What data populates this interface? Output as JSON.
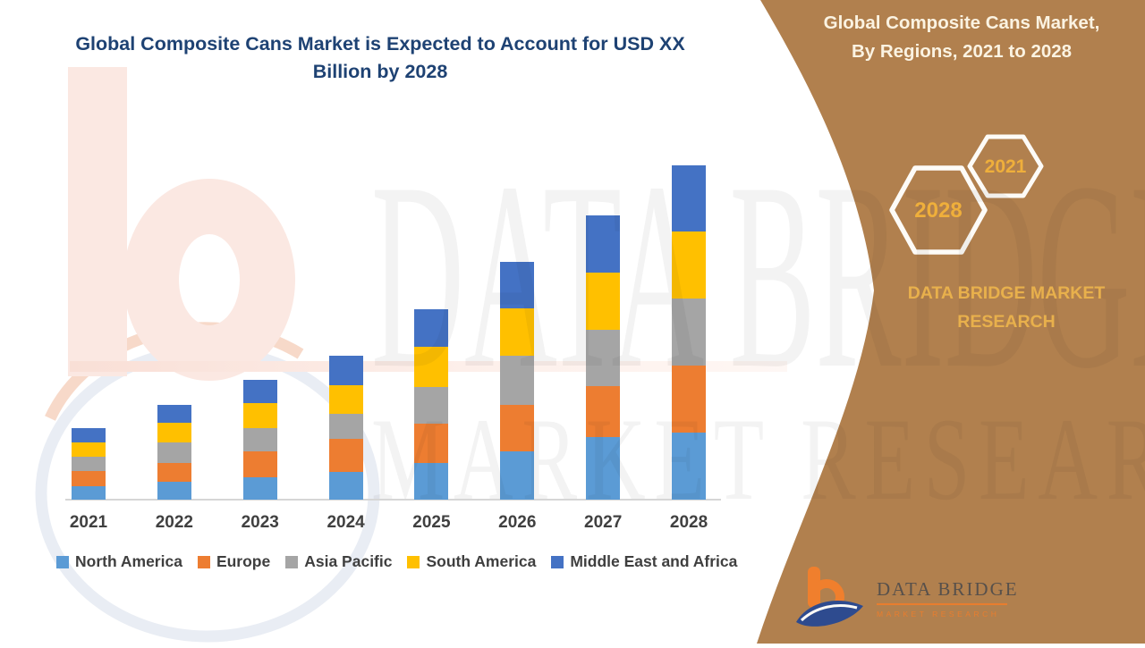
{
  "title": "Global Composite Cans Market is Expected to Account for USD XX Billion by 2028",
  "panel": {
    "heading": "Global Composite Cans Market, By Regions, 2021 to 2028",
    "hexagons": [
      {
        "label": "2028"
      },
      {
        "label": "2021"
      }
    ],
    "brand": "DATA BRIDGE MARKET RESEARCH",
    "colors": {
      "background": "#B1804E",
      "heading_text": "#FBF3E2",
      "gold_text": "#EFAF3B",
      "hexagon_stroke": "#FDFBF7"
    }
  },
  "logo": {
    "name": "DATA BRIDGE",
    "tagline": "MARKET RESEARCH"
  },
  "watermark": {
    "line1": "DATA BRIDGE",
    "line2": "MARKET RESEARCH"
  },
  "chart_data": {
    "type": "bar",
    "stacked": true,
    "title": "Global Composite Cans Market is Expected to Account for USD XX Billion by 2028",
    "xlabel": "",
    "ylabel": "",
    "y_axis_visible": false,
    "values_unit": "USD Billion (actual values undisclosed, shown as XX)",
    "values_are_relative_estimates": true,
    "legend_position": "bottom",
    "categories": [
      "2021",
      "2022",
      "2023",
      "2024",
      "2025",
      "2026",
      "2027",
      "2028"
    ],
    "series": [
      {
        "name": "North America",
        "color": "#5B9BD5",
        "values": [
          15,
          20,
          25,
          31,
          41,
          54,
          70,
          75
        ]
      },
      {
        "name": "Europe",
        "color": "#ED7D31",
        "values": [
          17,
          21,
          29,
          37,
          44,
          52,
          57,
          75
        ]
      },
      {
        "name": "Asia Pacific",
        "color": "#A5A5A5",
        "values": [
          16,
          23,
          26,
          28,
          41,
          55,
          63,
          75
        ]
      },
      {
        "name": "South America",
        "color": "#FFC000",
        "values": [
          16,
          22,
          28,
          32,
          45,
          53,
          64,
          75
        ]
      },
      {
        "name": "Middle East and Africa",
        "color": "#4472C4",
        "values": [
          16,
          20,
          26,
          33,
          42,
          52,
          64,
          74
        ]
      }
    ]
  }
}
